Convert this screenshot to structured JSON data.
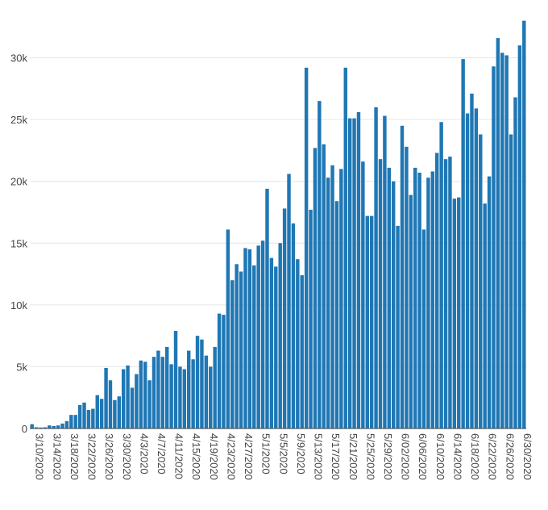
{
  "chart_data": {
    "type": "bar",
    "title": "",
    "xlabel": "",
    "ylabel": "",
    "ylim": [
      0,
      33500
    ],
    "grid": true,
    "legend": "none",
    "bar_color": "#1f77b4",
    "start_date": "3/10/2020",
    "x_tick_labels": [
      "3/10/2020",
      "3/14/2020",
      "3/18/2020",
      "3/22/2020",
      "3/26/2020",
      "3/30/2020",
      "4/3/2020",
      "4/7/2020",
      "4/11/2020",
      "4/15/2020",
      "4/19/2020",
      "4/23/2020",
      "4/27/2020",
      "5/1/2020",
      "5/5/2020",
      "5/9/2020",
      "5/13/2020",
      "5/17/2020",
      "5/21/2020",
      "5/25/2020",
      "5/29/2020",
      "6/02/2020",
      "6/06/2020",
      "6/10/2020",
      "6/14/2020",
      "6/18/2020",
      "6/22/2020",
      "6/26/2020",
      "6/30/2020"
    ],
    "y_ticks": [
      0,
      5000,
      10000,
      15000,
      20000,
      25000,
      30000
    ],
    "y_tick_labels": [
      "0",
      "5k",
      "10k",
      "15k",
      "20k",
      "25k",
      "30k"
    ],
    "values": [
      350,
      100,
      80,
      100,
      250,
      200,
      250,
      400,
      600,
      1100,
      1100,
      1900,
      2100,
      1500,
      1600,
      2700,
      2400,
      4900,
      3900,
      2300,
      2600,
      4800,
      5100,
      3300,
      4400,
      5500,
      5400,
      3900,
      5800,
      6300,
      5800,
      6600,
      5200,
      7900,
      5000,
      4800,
      6300,
      5600,
      7500,
      7200,
      5900,
      5000,
      6600,
      9300,
      9200,
      16100,
      12000,
      13300,
      12700,
      14600,
      14500,
      13200,
      14800,
      15200,
      19400,
      13800,
      13100,
      15000,
      17800,
      20600,
      16600,
      13700,
      12400,
      29200,
      17700,
      22700,
      26500,
      23000,
      20300,
      21300,
      18400,
      21000,
      29200,
      25100,
      25100,
      25600,
      21600,
      17200,
      17200,
      26000,
      21800,
      25300,
      21100,
      20000,
      16400,
      24500,
      22800,
      18900,
      21100,
      20700,
      16100,
      20300,
      20800,
      22300,
      24800,
      21800,
      22000,
      18600,
      18700,
      29900,
      25500,
      27100,
      25900,
      23800,
      18200,
      20400,
      29300,
      31600,
      30400,
      30200,
      23800,
      26800,
      31000,
      33000
    ]
  }
}
